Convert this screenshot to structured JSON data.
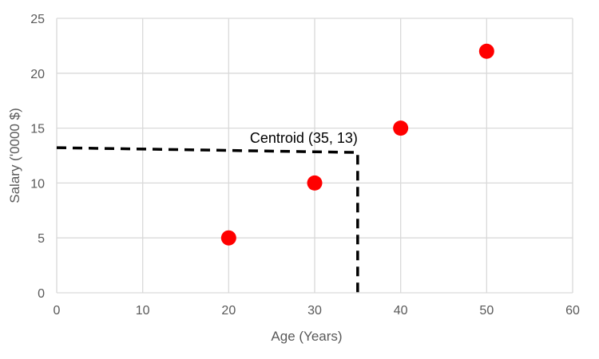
{
  "chart_data": {
    "type": "scatter",
    "title": "",
    "xlabel": "Age (Years)",
    "ylabel": "Salary ('0000 $)",
    "xlim": [
      0,
      60
    ],
    "ylim": [
      0,
      25
    ],
    "x_ticks": [
      0,
      10,
      20,
      30,
      40,
      50,
      60
    ],
    "y_ticks": [
      0,
      5,
      10,
      15,
      20,
      25
    ],
    "grid": true,
    "legend": "none",
    "series": [
      {
        "x": [
          20,
          30,
          40,
          50
        ],
        "y": [
          5,
          10,
          15,
          22
        ],
        "color": "#ff0000"
      }
    ],
    "annotations": [
      {
        "text": "Centroid (35, 13)",
        "x": 35,
        "y": 13,
        "style": "dashed guide lines to axes",
        "color": "#000000"
      }
    ],
    "gridline_color": "#d9d9d9"
  }
}
